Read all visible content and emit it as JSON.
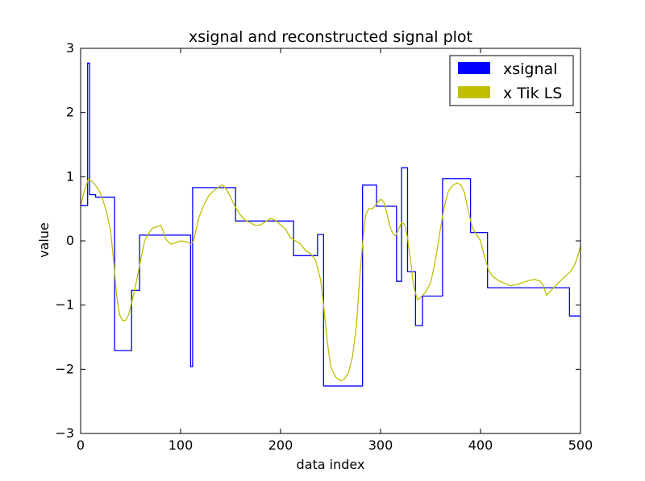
{
  "chart_data": {
    "type": "line",
    "title": "xsignal and reconstructed signal plot",
    "xlabel": "data index",
    "ylabel": "value",
    "xlim": [
      0,
      500
    ],
    "ylim": [
      -3,
      3
    ],
    "x_ticks": [
      0,
      100,
      200,
      300,
      400,
      500
    ],
    "y_ticks": [
      -3,
      -2,
      -1,
      0,
      1,
      2,
      3
    ],
    "x_tick_labels": [
      "0",
      "100",
      "200",
      "300",
      "400",
      "500"
    ],
    "y_tick_labels": [
      "−3",
      "−2",
      "−1",
      "0",
      "1",
      "2",
      "3"
    ],
    "grid": false,
    "legend_position": "top-right",
    "series": [
      {
        "name": "xsignal",
        "color": "#0000ff",
        "step": true,
        "points": [
          [
            0,
            0.55
          ],
          [
            7,
            0.55
          ],
          [
            7,
            2.77
          ],
          [
            9,
            2.77
          ],
          [
            9,
            0.72
          ],
          [
            15,
            0.72
          ],
          [
            15,
            0.68
          ],
          [
            34,
            0.68
          ],
          [
            34,
            -1.71
          ],
          [
            51,
            -1.71
          ],
          [
            51,
            -0.77
          ],
          [
            59,
            -0.77
          ],
          [
            59,
            0.09
          ],
          [
            110,
            0.09
          ],
          [
            110,
            -1.96
          ],
          [
            112,
            -1.96
          ],
          [
            112,
            0.83
          ],
          [
            155,
            0.83
          ],
          [
            155,
            0.31
          ],
          [
            213,
            0.31
          ],
          [
            213,
            -0.23
          ],
          [
            237,
            -0.23
          ],
          [
            237,
            0.1
          ],
          [
            243,
            0.1
          ],
          [
            243,
            -2.26
          ],
          [
            282,
            -2.26
          ],
          [
            282,
            0.87
          ],
          [
            296,
            0.87
          ],
          [
            296,
            0.54
          ],
          [
            316,
            0.54
          ],
          [
            316,
            -0.63
          ],
          [
            321,
            -0.63
          ],
          [
            321,
            1.14
          ],
          [
            327,
            1.14
          ],
          [
            327,
            -0.48
          ],
          [
            335,
            -0.48
          ],
          [
            335,
            -1.32
          ],
          [
            342,
            -1.32
          ],
          [
            342,
            -0.86
          ],
          [
            362,
            -0.86
          ],
          [
            362,
            0.97
          ],
          [
            390,
            0.97
          ],
          [
            390,
            0.13
          ],
          [
            407,
            0.13
          ],
          [
            407,
            -0.73
          ],
          [
            489,
            -0.73
          ],
          [
            489,
            -1.17
          ],
          [
            500,
            -1.17
          ]
        ]
      },
      {
        "name": "x Tik LS",
        "color": "#bfbf00",
        "step": false,
        "points": [
          [
            0,
            0.55
          ],
          [
            4,
            0.8
          ],
          [
            8,
            0.97
          ],
          [
            12,
            0.92
          ],
          [
            18,
            0.8
          ],
          [
            22,
            0.65
          ],
          [
            26,
            0.45
          ],
          [
            30,
            0.15
          ],
          [
            33,
            -0.3
          ],
          [
            36,
            -0.85
          ],
          [
            39,
            -1.15
          ],
          [
            42,
            -1.24
          ],
          [
            45,
            -1.24
          ],
          [
            48,
            -1.15
          ],
          [
            52,
            -0.9
          ],
          [
            56,
            -0.62
          ],
          [
            60,
            -0.3
          ],
          [
            64,
            0.0
          ],
          [
            68,
            0.12
          ],
          [
            72,
            0.2
          ],
          [
            76,
            0.22
          ],
          [
            80,
            0.24
          ],
          [
            82,
            0.18
          ],
          [
            85,
            0.03
          ],
          [
            90,
            -0.05
          ],
          [
            95,
            -0.03
          ],
          [
            100,
            0.0
          ],
          [
            105,
            -0.01
          ],
          [
            110,
            -0.05
          ],
          [
            113,
            0.0
          ],
          [
            118,
            0.35
          ],
          [
            123,
            0.55
          ],
          [
            128,
            0.7
          ],
          [
            133,
            0.78
          ],
          [
            138,
            0.84
          ],
          [
            142,
            0.87
          ],
          [
            146,
            0.8
          ],
          [
            150,
            0.68
          ],
          [
            155,
            0.52
          ],
          [
            160,
            0.4
          ],
          [
            165,
            0.32
          ],
          [
            170,
            0.28
          ],
          [
            175,
            0.24
          ],
          [
            180,
            0.25
          ],
          [
            185,
            0.3
          ],
          [
            190,
            0.35
          ],
          [
            195,
            0.32
          ],
          [
            200,
            0.25
          ],
          [
            205,
            0.18
          ],
          [
            210,
            0.05
          ],
          [
            215,
            0.0
          ],
          [
            220,
            -0.05
          ],
          [
            225,
            -0.15
          ],
          [
            230,
            -0.2
          ],
          [
            235,
            -0.3
          ],
          [
            240,
            -0.6
          ],
          [
            243,
            -1.0
          ],
          [
            247,
            -1.6
          ],
          [
            250,
            -1.95
          ],
          [
            255,
            -2.12
          ],
          [
            260,
            -2.18
          ],
          [
            264,
            -2.15
          ],
          [
            268,
            -2.05
          ],
          [
            272,
            -1.8
          ],
          [
            276,
            -1.3
          ],
          [
            279,
            -0.6
          ],
          [
            282,
            -0.05
          ],
          [
            285,
            0.4
          ],
          [
            288,
            0.5
          ],
          [
            292,
            0.5
          ],
          [
            296,
            0.58
          ],
          [
            300,
            0.65
          ],
          [
            303,
            0.62
          ],
          [
            306,
            0.45
          ],
          [
            309,
            0.25
          ],
          [
            312,
            0.12
          ],
          [
            315,
            0.08
          ],
          [
            318,
            0.18
          ],
          [
            321,
            0.28
          ],
          [
            324,
            0.26
          ],
          [
            327,
            0.05
          ],
          [
            330,
            -0.3
          ],
          [
            333,
            -0.7
          ],
          [
            337,
            -0.92
          ],
          [
            340,
            -0.88
          ],
          [
            345,
            -0.8
          ],
          [
            350,
            -0.65
          ],
          [
            353,
            -0.45
          ],
          [
            356,
            -0.2
          ],
          [
            360,
            0.2
          ],
          [
            364,
            0.55
          ],
          [
            368,
            0.78
          ],
          [
            372,
            0.86
          ],
          [
            376,
            0.9
          ],
          [
            380,
            0.88
          ],
          [
            384,
            0.75
          ],
          [
            388,
            0.45
          ],
          [
            392,
            0.2
          ],
          [
            396,
            0.1
          ],
          [
            400,
            0.0
          ],
          [
            404,
            -0.25
          ],
          [
            408,
            -0.45
          ],
          [
            412,
            -0.55
          ],
          [
            418,
            -0.62
          ],
          [
            424,
            -0.66
          ],
          [
            430,
            -0.7
          ],
          [
            436,
            -0.68
          ],
          [
            442,
            -0.65
          ],
          [
            448,
            -0.62
          ],
          [
            454,
            -0.6
          ],
          [
            460,
            -0.63
          ],
          [
            463,
            -0.7
          ],
          [
            466,
            -0.85
          ],
          [
            470,
            -0.78
          ],
          [
            475,
            -0.7
          ],
          [
            480,
            -0.62
          ],
          [
            485,
            -0.55
          ],
          [
            490,
            -0.48
          ],
          [
            494,
            -0.38
          ],
          [
            497,
            -0.25
          ],
          [
            500,
            -0.08
          ]
        ]
      }
    ]
  }
}
